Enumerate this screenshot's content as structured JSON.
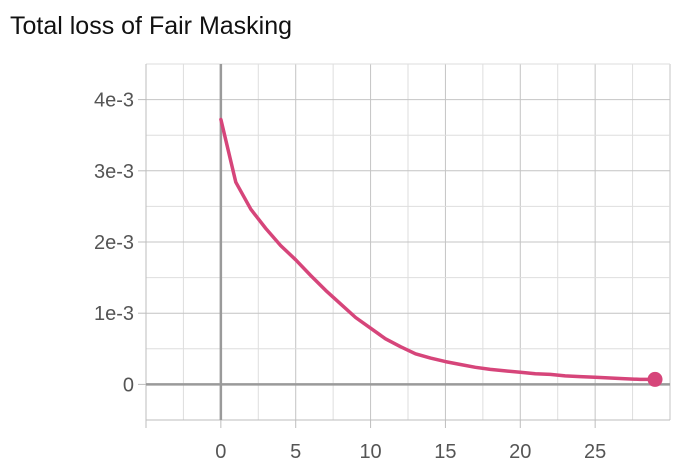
{
  "chart_data": {
    "type": "line",
    "title": "Total loss of Fair Masking",
    "xlabel": "",
    "ylabel": "",
    "xlim": [
      -5,
      30
    ],
    "ylim": [
      -0.0005,
      0.0045
    ],
    "x_ticks": [
      0,
      5,
      10,
      15,
      20,
      25
    ],
    "x_tick_labels": [
      "0",
      "5",
      "10",
      "15",
      "20",
      "25"
    ],
    "y_ticks": [
      0,
      0.001,
      0.002,
      0.003,
      0.004
    ],
    "y_tick_labels": [
      "0",
      "1e-3",
      "2e-3",
      "3e-3",
      "4e-3"
    ],
    "grid": true,
    "legend": "none",
    "series": [
      {
        "color": "#d6457a",
        "end_marker": true,
        "x": [
          0,
          1,
          2,
          3,
          4,
          5,
          6,
          7,
          8,
          9,
          10,
          11,
          12,
          13,
          14,
          15,
          16,
          17,
          18,
          19,
          20,
          21,
          22,
          23,
          24,
          25,
          26,
          27,
          28,
          29
        ],
        "y": [
          0.00372,
          0.00284,
          0.00246,
          0.00219,
          0.00195,
          0.00175,
          0.00153,
          0.00132,
          0.00113,
          0.00094,
          0.00079,
          0.00064,
          0.00053,
          0.00043,
          0.00037,
          0.00032,
          0.00028,
          0.00024,
          0.00021,
          0.00019,
          0.00017,
          0.00015,
          0.00014,
          0.00012,
          0.00011,
          0.0001,
          9e-05,
          8e-05,
          7e-05,
          7e-05
        ]
      }
    ]
  }
}
